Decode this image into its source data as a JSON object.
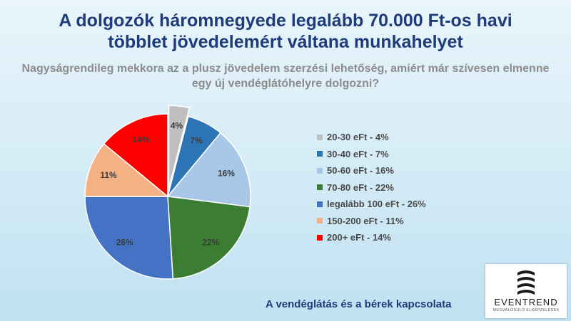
{
  "header": {
    "title_line1": "A dolgozók háromnegyede legalább 70.000 Ft-os havi",
    "title_line2": "többlet jövedelemért váltana munkahelyet",
    "subtitle_line1": "Nagyságrendileg mekkora az a plusz jövedelem szerzési lehetőség, amiért már szívesen elmenne",
    "subtitle_line2": "egy új vendéglátóhelyre dolgozni?"
  },
  "chart_data": {
    "type": "pie",
    "slices": [
      {
        "label": "20-30 eFt",
        "legend": "20-30 eFt - 4%",
        "value": 4,
        "data_label": "4%",
        "color": "#bfbfbf",
        "exploded": true
      },
      {
        "label": "30-40 eFt",
        "legend": "30-40 eFt - 7%",
        "value": 7,
        "data_label": "7%",
        "color": "#2e75b6",
        "exploded": false
      },
      {
        "label": "50-60 eFt",
        "legend": "50-60 eFt - 16%",
        "value": 16,
        "data_label": "16%",
        "color": "#a9c8e8",
        "exploded": false
      },
      {
        "label": "70-80 eFt",
        "legend": "70-80 eFt - 22%",
        "value": 22,
        "data_label": "22%",
        "color": "#3b7d32",
        "exploded": false
      },
      {
        "label": "legalább 100 eFt",
        "legend": "legalább 100 eFt - 26%",
        "value": 26,
        "data_label": "26%",
        "color": "#4472c4",
        "exploded": false
      },
      {
        "label": "150-200 eFt",
        "legend": "150-200 eFt - 11%",
        "value": 11,
        "data_label": "11%",
        "color": "#f4b183",
        "exploded": false
      },
      {
        "label": "200+ eFt",
        "legend": "200+ eFt - 14%",
        "value": 14,
        "data_label": "14%",
        "color": "#ff0000",
        "exploded": false
      }
    ],
    "legend_position": "right"
  },
  "footer": {
    "text": "A vendéglátás és a bérek kapcsolata"
  },
  "logo": {
    "brand": "EVENTREND",
    "tagline": "MEGVALÓSULÓ ELKÉPZELÉSEK",
    "icon": "eventrend-logo-icon"
  }
}
